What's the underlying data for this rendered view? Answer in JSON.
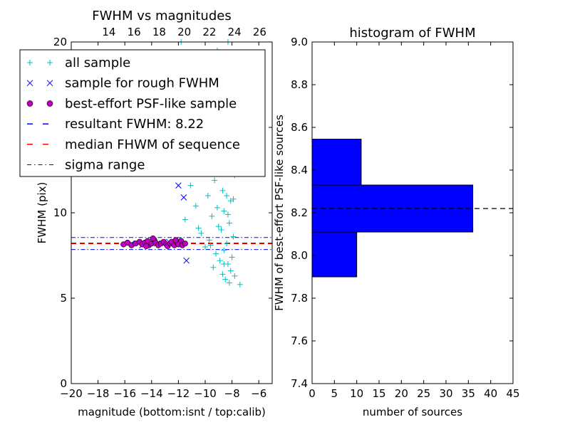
{
  "chart_data": [
    {
      "type": "scatter",
      "title": "FWHM vs magnitudes",
      "xlabel": "magnitude (bottom:isnt / top:calib)",
      "ylabel": "FWHM (pix)",
      "xlim": [
        -20,
        -5
      ],
      "ylim": [
        0,
        20
      ],
      "x_ticks": [
        -20,
        -18,
        -16,
        -14,
        -12,
        -10,
        -8,
        -6
      ],
      "y_ticks": [
        0,
        5,
        10,
        15,
        20
      ],
      "top_xlim": [
        11.0,
        27.0
      ],
      "top_x_ticks": [
        14,
        16,
        18,
        20,
        22,
        24,
        26
      ],
      "legend_position": "upper-left",
      "legend": [
        {
          "marker": "plus",
          "color": "#00bfbf",
          "label": "all sample"
        },
        {
          "marker": "x",
          "color": "#0000ff",
          "label": "sample for rough FWHM"
        },
        {
          "marker": "circle",
          "color": "#bf00bf",
          "label": "best-effort PSF-like sample"
        },
        {
          "marker": "dashed-line",
          "color": "#0000ff",
          "label": "resultant FWHM: 8.22"
        },
        {
          "marker": "dashed-line",
          "color": "#ff0000",
          "label": "median FHWM of sequence"
        },
        {
          "marker": "dashdot-line",
          "color": "#0000ff",
          "label": "sigma range"
        }
      ],
      "reference_lines": {
        "resultant_fwhm": 8.22,
        "median_fwhm": 8.2,
        "sigma_range": [
          7.85,
          8.55
        ]
      },
      "series": [
        {
          "name": "all sample",
          "marker": "plus",
          "color": "#00bfbf",
          "points": [
            [
              -8.3,
              20.0
            ],
            [
              -11.8,
              20.0
            ],
            [
              -9.1,
              19.5
            ],
            [
              -8.6,
              18.8
            ],
            [
              -10.6,
              18.5
            ],
            [
              -9.7,
              18.0
            ],
            [
              -10.2,
              17.5
            ],
            [
              -8.4,
              17.2
            ],
            [
              -7.9,
              16.9
            ],
            [
              -9.4,
              16.5
            ],
            [
              -10.9,
              16.0
            ],
            [
              -8.8,
              15.8
            ],
            [
              -9.9,
              15.4
            ],
            [
              -8.2,
              15.1
            ],
            [
              -9.2,
              14.7
            ],
            [
              -10.4,
              14.3
            ],
            [
              -8.0,
              14.0
            ],
            [
              -8.5,
              13.7
            ],
            [
              -9.6,
              13.4
            ],
            [
              -8.9,
              13.1
            ],
            [
              -10.1,
              12.8
            ],
            [
              -8.3,
              12.5
            ],
            [
              -7.8,
              12.2
            ],
            [
              -9.3,
              11.9
            ],
            [
              -11.1,
              11.6
            ],
            [
              -8.7,
              11.3
            ],
            [
              -9.8,
              11.0
            ],
            [
              -8.1,
              10.7
            ],
            [
              -10.7,
              10.4
            ],
            [
              -8.6,
              10.1
            ],
            [
              -9.5,
              9.8
            ],
            [
              -11.5,
              9.6
            ],
            [
              -8.2,
              9.4
            ],
            [
              -9.0,
              9.2
            ],
            [
              -8.8,
              9.0
            ],
            [
              -10.3,
              8.8
            ],
            [
              -7.9,
              8.6
            ],
            [
              -9.7,
              8.4
            ],
            [
              -8.4,
              8.2
            ],
            [
              -11.9,
              8.4
            ],
            [
              -10.0,
              8.0
            ],
            [
              -8.6,
              7.8
            ],
            [
              -9.2,
              7.6
            ],
            [
              -8.0,
              7.4
            ],
            [
              -8.9,
              7.2
            ],
            [
              -8.3,
              7.0
            ],
            [
              -9.4,
              6.8
            ],
            [
              -8.1,
              6.6
            ],
            [
              -8.7,
              6.4
            ],
            [
              -8.5,
              6.1
            ],
            [
              -7.8,
              6.3
            ],
            [
              -8.2,
              5.9
            ],
            [
              -7.4,
              5.8
            ],
            [
              -8.6,
              7.0
            ],
            [
              -9.6,
              8.1
            ],
            [
              -8.4,
              11.0
            ],
            [
              -8.0,
              12.9
            ],
            [
              -9.1,
              10.3
            ],
            [
              -8.3,
              9.9
            ],
            [
              -10.5,
              9.1
            ],
            [
              -8.8,
              13.9
            ],
            [
              -7.9,
              10.8
            ]
          ]
        },
        {
          "name": "sample for rough FWHM",
          "marker": "x",
          "color": "#0000ff",
          "points": [
            [
              -12.0,
              11.6
            ],
            [
              -11.6,
              10.9
            ],
            [
              -11.4,
              7.2
            ],
            [
              -12.7,
              8.3
            ],
            [
              -13.6,
              8.2
            ],
            [
              -14.7,
              8.1
            ],
            [
              -15.5,
              8.2
            ]
          ]
        },
        {
          "name": "best-effort PSF-like sample",
          "marker": "circle",
          "color": "#bf00bf",
          "points": [
            [
              -16.1,
              8.15
            ],
            [
              -15.8,
              8.25
            ],
            [
              -15.5,
              8.1
            ],
            [
              -15.2,
              8.2
            ],
            [
              -14.9,
              8.3
            ],
            [
              -14.7,
              8.15
            ],
            [
              -14.5,
              8.25
            ],
            [
              -14.3,
              8.35
            ],
            [
              -14.2,
              8.1
            ],
            [
              -14.0,
              8.2
            ],
            [
              -13.8,
              8.4
            ],
            [
              -13.7,
              8.25
            ],
            [
              -13.5,
              8.1
            ],
            [
              -13.3,
              8.2
            ],
            [
              -13.1,
              8.3
            ],
            [
              -12.9,
              8.15
            ],
            [
              -12.8,
              8.05
            ],
            [
              -12.6,
              8.2
            ],
            [
              -12.5,
              8.3
            ],
            [
              -12.3,
              8.1
            ],
            [
              -12.1,
              8.25
            ],
            [
              -12.0,
              8.15
            ],
            [
              -11.8,
              8.35
            ],
            [
              -11.7,
              8.1
            ],
            [
              -11.5,
              8.2
            ],
            [
              -12.2,
              8.4
            ],
            [
              -14.4,
              8.05
            ],
            [
              -13.9,
              8.5
            ]
          ]
        }
      ]
    },
    {
      "type": "bar",
      "orientation": "horizontal",
      "title": "histogram of FWHM",
      "xlabel": "number of sources",
      "ylabel": "FWHM of best-effort PSF-like sources",
      "xlim": [
        0,
        45
      ],
      "ylim": [
        7.4,
        9.0
      ],
      "x_ticks": [
        0,
        5,
        10,
        15,
        20,
        25,
        30,
        35,
        40,
        45
      ],
      "y_ticks": [
        7.4,
        7.6,
        7.8,
        8.0,
        8.2,
        8.4,
        8.6,
        8.8,
        9.0
      ],
      "bar_color": "#0000ff",
      "bins": [
        {
          "from": 7.9,
          "to": 8.11,
          "count": 10
        },
        {
          "from": 8.11,
          "to": 8.33,
          "count": 36
        },
        {
          "from": 8.33,
          "to": 8.545,
          "count": 11
        }
      ],
      "reference_line": 8.22
    }
  ]
}
